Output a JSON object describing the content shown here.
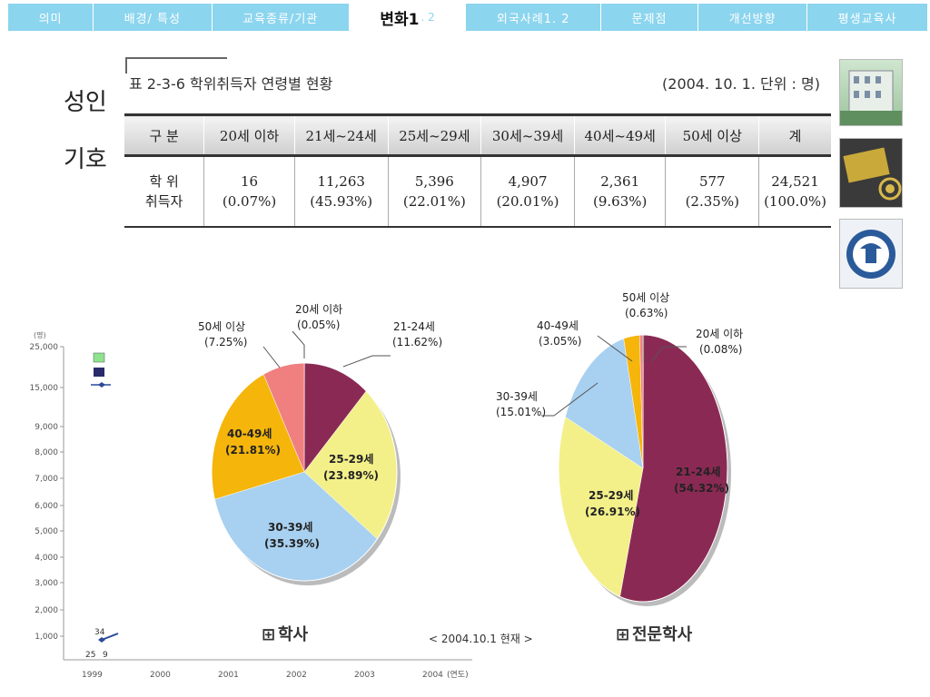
{
  "nav": {
    "tabs": [
      {
        "label": "의미"
      },
      {
        "label": "배경/ 특성"
      },
      {
        "label": "교육종류/기관"
      },
      {
        "label": "변화1",
        "suffix": ". 2",
        "active": true
      },
      {
        "label": "외국사례1. 2"
      },
      {
        "label": "문제점"
      },
      {
        "label": "개선방향"
      },
      {
        "label": "평생교육사"
      }
    ]
  },
  "background": {
    "line1": "성인",
    "line2": "기호"
  },
  "left_chart": {
    "unit": "(명)",
    "y_ticks": [
      "25,000",
      "15,000",
      "9,000",
      "8,000",
      "7,000",
      "6,000",
      "5,000",
      "4,000",
      "3,000",
      "2,000",
      "1,000"
    ],
    "x_ticks": [
      "1999",
      "2000",
      "2001",
      "2002",
      "2003",
      "2004"
    ],
    "x_unit": "(연도)",
    "point_labels": [
      "34",
      "25",
      "9"
    ]
  },
  "table": {
    "caption": "표 2-3-6   학위취득자 연령별 현황",
    "note": "(2004. 10. 1. 단위 : 명)",
    "headers": [
      "구 분",
      "20세 이하",
      "21세~24세",
      "25세~29세",
      "30세~39세",
      "40세~49세",
      "50세 이상",
      "계"
    ],
    "row_label_1": "학 위",
    "row_label_2": "취득자",
    "values": [
      "16",
      "11,263",
      "5,396",
      "4,907",
      "2,361",
      "577",
      "24,521"
    ],
    "percents": [
      "(0.07%)",
      "(45.93%)",
      "(22.01%)",
      "(20.01%)",
      "(9.63%)",
      "(2.35%)",
      "(100.0%)"
    ]
  },
  "pie_note": "< 2004.10.1 현재 >",
  "chart_data": [
    {
      "type": "pie",
      "title": "학사",
      "slices": [
        {
          "label": "20세 이하",
          "percent": 0.05,
          "color": "#8a2a54"
        },
        {
          "label": "21-24세",
          "percent": 11.62,
          "color": "#8a2a54"
        },
        {
          "label": "25-29세",
          "percent": 23.89,
          "color": "#f3f08a"
        },
        {
          "label": "30-39세",
          "percent": 35.39,
          "color": "#a8d0f0"
        },
        {
          "label": "40-49세",
          "percent": 21.81,
          "color": "#f5b50a"
        },
        {
          "label": "50세 이상",
          "percent": 7.25,
          "color": "#f08080"
        }
      ]
    },
    {
      "type": "pie",
      "title": "전문학사",
      "slices": [
        {
          "label": "20세 이하",
          "percent": 0.08,
          "color": "#8a2a54"
        },
        {
          "label": "21-24세",
          "percent": 54.32,
          "color": "#8a2a54"
        },
        {
          "label": "25-29세",
          "percent": 26.91,
          "color": "#f3f08a"
        },
        {
          "label": "30-39세",
          "percent": 15.01,
          "color": "#a8d0f0"
        },
        {
          "label": "40-49세",
          "percent": 3.05,
          "color": "#f5b50a"
        },
        {
          "label": "50세 이상",
          "percent": 0.63,
          "color": "#f08080"
        }
      ]
    }
  ]
}
